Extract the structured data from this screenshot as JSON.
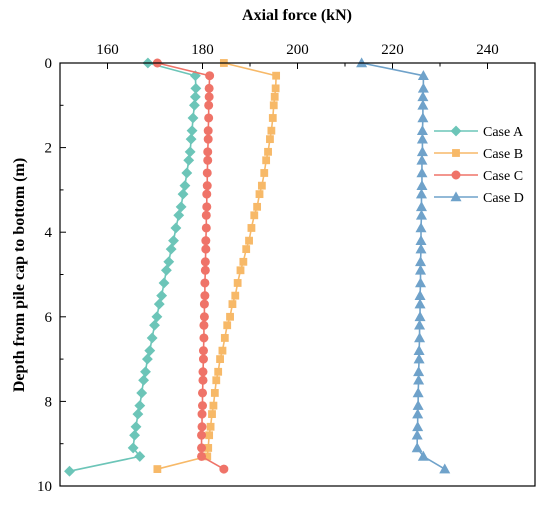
{
  "chart_data": {
    "type": "line",
    "xlabel": "Axial force (kN)",
    "ylabel": "Depth from pile cap to bottom (m)",
    "x_axis_position": "top",
    "y_axis_inverted": true,
    "xlim": [
      150,
      250
    ],
    "ylim": [
      0,
      10
    ],
    "x_major_ticks": [
      160,
      180,
      200,
      220,
      240
    ],
    "y_major_ticks": [
      0,
      2,
      4,
      6,
      8,
      10
    ],
    "grid": false,
    "legend_position": "right",
    "series": [
      {
        "name": "Case A",
        "color": "#6cc5b8",
        "marker": "diamond",
        "points": [
          [
            168.5,
            0.0
          ],
          [
            178.5,
            0.3
          ],
          [
            178.6,
            0.6
          ],
          [
            178.5,
            0.8
          ],
          [
            178.3,
            1.0
          ],
          [
            178.0,
            1.3
          ],
          [
            177.8,
            1.6
          ],
          [
            177.6,
            1.8
          ],
          [
            177.4,
            2.1
          ],
          [
            177.1,
            2.3
          ],
          [
            176.7,
            2.6
          ],
          [
            176.3,
            2.9
          ],
          [
            175.9,
            3.1
          ],
          [
            175.5,
            3.4
          ],
          [
            175.0,
            3.6
          ],
          [
            174.4,
            3.9
          ],
          [
            173.9,
            4.2
          ],
          [
            173.4,
            4.4
          ],
          [
            172.9,
            4.7
          ],
          [
            172.4,
            4.9
          ],
          [
            171.9,
            5.2
          ],
          [
            171.4,
            5.5
          ],
          [
            170.9,
            5.7
          ],
          [
            170.4,
            6.0
          ],
          [
            169.9,
            6.2
          ],
          [
            169.4,
            6.5
          ],
          [
            168.9,
            6.8
          ],
          [
            168.4,
            7.0
          ],
          [
            168.0,
            7.3
          ],
          [
            167.6,
            7.5
          ],
          [
            167.2,
            7.8
          ],
          [
            166.8,
            8.1
          ],
          [
            166.4,
            8.3
          ],
          [
            166.0,
            8.6
          ],
          [
            165.7,
            8.8
          ],
          [
            165.4,
            9.1
          ],
          [
            166.8,
            9.3
          ],
          [
            152.0,
            9.65
          ]
        ]
      },
      {
        "name": "Case B",
        "color": "#f7b968",
        "marker": "square",
        "points": [
          [
            184.5,
            0.0
          ],
          [
            195.5,
            0.3
          ],
          [
            195.4,
            0.6
          ],
          [
            195.2,
            0.8
          ],
          [
            195.0,
            1.0
          ],
          [
            194.8,
            1.3
          ],
          [
            194.5,
            1.6
          ],
          [
            194.2,
            1.8
          ],
          [
            193.8,
            2.1
          ],
          [
            193.4,
            2.3
          ],
          [
            193.0,
            2.6
          ],
          [
            192.5,
            2.9
          ],
          [
            192.0,
            3.1
          ],
          [
            191.5,
            3.4
          ],
          [
            190.9,
            3.6
          ],
          [
            190.3,
            3.9
          ],
          [
            189.8,
            4.2
          ],
          [
            189.2,
            4.4
          ],
          [
            188.6,
            4.7
          ],
          [
            188.0,
            4.9
          ],
          [
            187.4,
            5.2
          ],
          [
            186.9,
            5.5
          ],
          [
            186.3,
            5.7
          ],
          [
            185.8,
            6.0
          ],
          [
            185.2,
            6.2
          ],
          [
            184.7,
            6.5
          ],
          [
            184.2,
            6.8
          ],
          [
            183.7,
            7.0
          ],
          [
            183.3,
            7.3
          ],
          [
            182.9,
            7.5
          ],
          [
            182.6,
            7.8
          ],
          [
            182.3,
            8.1
          ],
          [
            182.0,
            8.3
          ],
          [
            181.7,
            8.6
          ],
          [
            181.4,
            8.8
          ],
          [
            181.2,
            9.1
          ],
          [
            181.0,
            9.3
          ],
          [
            170.5,
            9.6
          ]
        ]
      },
      {
        "name": "Case C",
        "color": "#ef7368",
        "marker": "circle",
        "points": [
          [
            170.5,
            0.0
          ],
          [
            181.5,
            0.3
          ],
          [
            181.4,
            0.6
          ],
          [
            181.4,
            0.8
          ],
          [
            181.3,
            1.0
          ],
          [
            181.3,
            1.3
          ],
          [
            181.2,
            1.6
          ],
          [
            181.2,
            1.8
          ],
          [
            181.1,
            2.1
          ],
          [
            181.1,
            2.3
          ],
          [
            181.0,
            2.6
          ],
          [
            181.0,
            2.9
          ],
          [
            180.9,
            3.1
          ],
          [
            180.9,
            3.4
          ],
          [
            180.8,
            3.6
          ],
          [
            180.8,
            3.9
          ],
          [
            180.7,
            4.2
          ],
          [
            180.7,
            4.4
          ],
          [
            180.6,
            4.7
          ],
          [
            180.6,
            4.9
          ],
          [
            180.5,
            5.2
          ],
          [
            180.5,
            5.5
          ],
          [
            180.4,
            5.7
          ],
          [
            180.4,
            6.0
          ],
          [
            180.3,
            6.2
          ],
          [
            180.3,
            6.5
          ],
          [
            180.2,
            6.8
          ],
          [
            180.2,
            7.0
          ],
          [
            180.1,
            7.3
          ],
          [
            180.1,
            7.5
          ],
          [
            180.0,
            7.8
          ],
          [
            180.0,
            8.1
          ],
          [
            179.9,
            8.3
          ],
          [
            179.9,
            8.6
          ],
          [
            179.8,
            8.8
          ],
          [
            179.8,
            9.1
          ],
          [
            179.8,
            9.3
          ],
          [
            184.5,
            9.6
          ]
        ]
      },
      {
        "name": "Case D",
        "color": "#6fa2ca",
        "marker": "triangle",
        "points": [
          [
            213.5,
            0.0
          ],
          [
            226.5,
            0.3
          ],
          [
            226.5,
            0.6
          ],
          [
            226.4,
            0.8
          ],
          [
            226.4,
            1.0
          ],
          [
            226.4,
            1.3
          ],
          [
            226.3,
            1.6
          ],
          [
            226.3,
            1.8
          ],
          [
            226.3,
            2.1
          ],
          [
            226.2,
            2.3
          ],
          [
            226.2,
            2.6
          ],
          [
            226.2,
            2.9
          ],
          [
            226.1,
            3.1
          ],
          [
            226.1,
            3.4
          ],
          [
            226.1,
            3.6
          ],
          [
            226.0,
            3.9
          ],
          [
            226.0,
            4.2
          ],
          [
            226.0,
            4.4
          ],
          [
            225.9,
            4.7
          ],
          [
            225.9,
            4.9
          ],
          [
            225.9,
            5.2
          ],
          [
            225.8,
            5.5
          ],
          [
            225.8,
            5.7
          ],
          [
            225.8,
            6.0
          ],
          [
            225.7,
            6.2
          ],
          [
            225.7,
            6.5
          ],
          [
            225.6,
            6.8
          ],
          [
            225.6,
            7.0
          ],
          [
            225.5,
            7.3
          ],
          [
            225.5,
            7.5
          ],
          [
            225.4,
            7.8
          ],
          [
            225.4,
            8.1
          ],
          [
            225.3,
            8.3
          ],
          [
            225.3,
            8.6
          ],
          [
            225.2,
            8.8
          ],
          [
            225.2,
            9.1
          ],
          [
            226.5,
            9.3
          ],
          [
            231.0,
            9.6
          ]
        ]
      }
    ]
  }
}
